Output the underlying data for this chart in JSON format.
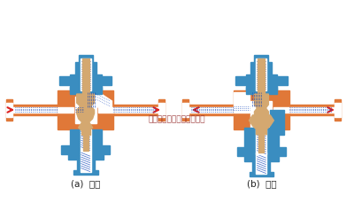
{
  "bg_color": "#FFFFFF",
  "orange": "#E07838",
  "blue": "#3A8DC0",
  "tan": "#D4A870",
  "white": "#FFFFFF",
  "red_arrow": "#DD2020",
  "dot_blue": "#1144BB",
  "label_a": "(a)  分流",
  "label_b": "(b)  合流",
  "watermark": "多仪阀门（上海）有限公司"
}
